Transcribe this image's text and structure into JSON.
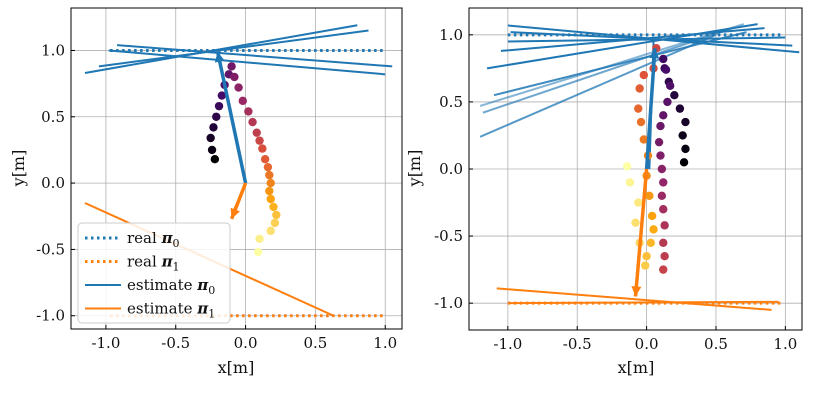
{
  "chart_data": [
    {
      "type": "line",
      "panel": "left",
      "xlabel": "x[m]",
      "ylabel": "y[m]",
      "xlim": [
        -1.25,
        1.12
      ],
      "ylim": [
        -1.1,
        1.32
      ],
      "xticks": [
        -1.0,
        -0.5,
        0.0,
        0.5,
        1.0
      ],
      "xticklabels": [
        "-1.0",
        "-0.5",
        "0.0",
        "0.5",
        "1.0"
      ],
      "yticks": [
        -1.0,
        -0.5,
        0.0,
        0.5,
        1.0
      ],
      "yticklabels": [
        "-1.0",
        "-0.5",
        "0.0",
        "0.5",
        "1.0"
      ],
      "grid": true,
      "legend": {
        "position": "lower-left",
        "entries": [
          {
            "label": "real ",
            "sym": "π",
            "sub": "0",
            "style": "dotted",
            "color": "#1f77b4"
          },
          {
            "label": "real ",
            "sym": "π",
            "sub": "1",
            "style": "dotted",
            "color": "#ff7f0e"
          },
          {
            "label": "estimate ",
            "sym": "π",
            "sub": "0",
            "style": "solid",
            "color": "#1f77b4"
          },
          {
            "label": "estimate ",
            "sym": "π",
            "sub": "1",
            "style": "solid",
            "color": "#ff7f0e"
          }
        ]
      },
      "series": [
        {
          "name": "real π0",
          "style": "dotted",
          "color": "#1f77b4",
          "points": [
            [
              -0.97,
              1.0
            ],
            [
              1.0,
              1.0
            ]
          ]
        },
        {
          "name": "real π1",
          "style": "dotted",
          "color": "#ff7f0e",
          "points": [
            [
              -0.97,
              -1.0
            ],
            [
              1.0,
              -1.0
            ]
          ]
        },
        {
          "name": "estimate π0",
          "style": "solid",
          "color": "#1f77b4",
          "lines": [
            [
              [
                -1.15,
                0.83
              ],
              [
                0.8,
                1.19
              ]
            ],
            [
              [
                -1.05,
                0.88
              ],
              [
                0.88,
                1.15
              ]
            ],
            [
              [
                -0.92,
                1.04
              ],
              [
                1.05,
                0.88
              ]
            ],
            [
              [
                -0.98,
                1.0
              ],
              [
                1.0,
                0.82
              ]
            ],
            [
              [
                -0.2,
                0.99
              ],
              [
                0.0,
                0.0
              ]
            ]
          ]
        },
        {
          "name": "estimate π1",
          "style": "solid",
          "color": "#ff7f0e",
          "lines": [
            [
              [
                -1.15,
                -0.15
              ],
              [
                0.63,
                -1.0
              ]
            ],
            [
              [
                -0.09,
                -0.22
              ],
              [
                0.0,
                0.0
              ]
            ],
            [
              [
                -0.1,
                -0.27
              ],
              [
                -0.02,
                -0.05
              ]
            ]
          ]
        },
        {
          "name": "trajectory",
          "type": "scatter",
          "colormap": "inferno",
          "points": [
            [
              -0.22,
              0.18
            ],
            [
              -0.24,
              0.25
            ],
            [
              -0.25,
              0.34
            ],
            [
              -0.23,
              0.42
            ],
            [
              -0.21,
              0.5
            ],
            [
              -0.19,
              0.58
            ],
            [
              -0.17,
              0.66
            ],
            [
              -0.15,
              0.74
            ],
            [
              -0.12,
              0.82
            ],
            [
              -0.1,
              0.88
            ],
            [
              -0.08,
              0.8
            ],
            [
              -0.05,
              0.72
            ],
            [
              -0.02,
              0.62
            ],
            [
              0.02,
              0.54
            ],
            [
              0.05,
              0.46
            ],
            [
              0.08,
              0.38
            ],
            [
              0.1,
              0.32
            ],
            [
              0.12,
              0.26
            ],
            [
              0.14,
              0.18
            ],
            [
              0.16,
              0.12
            ],
            [
              0.17,
              0.06
            ],
            [
              0.18,
              0.0
            ],
            [
              0.17,
              -0.06
            ],
            [
              0.18,
              -0.12
            ],
            [
              0.2,
              -0.18
            ],
            [
              0.22,
              -0.24
            ],
            [
              0.21,
              -0.3
            ],
            [
              0.18,
              -0.36
            ],
            [
              0.1,
              -0.42
            ],
            [
              0.09,
              -0.52
            ]
          ]
        }
      ],
      "arrows": [
        {
          "from": [
            0.0,
            0.0
          ],
          "to": [
            -0.2,
            0.99
          ],
          "color": "#1f77b4"
        },
        {
          "from": [
            0.0,
            0.0
          ],
          "to": [
            -0.1,
            -0.27
          ],
          "color": "#ff7f0e"
        }
      ]
    },
    {
      "type": "line",
      "panel": "right",
      "xlabel": "x[m]",
      "ylabel": "y[m]",
      "xlim": [
        -1.28,
        1.12
      ],
      "ylim": [
        -1.2,
        1.2
      ],
      "xticks": [
        -1.0,
        -0.5,
        0.0,
        0.5,
        1.0
      ],
      "xticklabels": [
        "-1.0",
        "-0.5",
        "0.0",
        "0.5",
        "1.0"
      ],
      "yticks": [
        -1.0,
        -0.5,
        0.0,
        0.5,
        1.0
      ],
      "yticklabels": [
        "-1.0",
        "-0.5",
        "0.0",
        "0.5",
        "1.0"
      ],
      "grid": true,
      "series": [
        {
          "name": "real π0",
          "style": "dotted",
          "color": "#1f77b4",
          "points": [
            [
              -1.0,
              1.0
            ],
            [
              0.98,
              1.0
            ]
          ]
        },
        {
          "name": "real π1",
          "style": "dotted",
          "color": "#ff7f0e",
          "points": [
            [
              -1.0,
              -1.0
            ],
            [
              0.98,
              -1.0
            ]
          ]
        },
        {
          "name": "estimate π0",
          "style": "solid",
          "color": "#1f77b4",
          "lines": [
            [
              [
                -1.2,
                0.47
              ],
              [
                0.7,
                1.08
              ]
            ],
            [
              [
                -1.18,
                0.42
              ],
              [
                0.62,
                1.05
              ]
            ],
            [
              [
                -1.2,
                0.24
              ],
              [
                0.5,
                1.0
              ]
            ],
            [
              [
                -1.1,
                0.55
              ],
              [
                0.72,
                1.02
              ]
            ],
            [
              [
                -1.15,
                0.75
              ],
              [
                0.8,
                1.08
              ]
            ],
            [
              [
                -1.05,
                0.88
              ],
              [
                0.85,
                1.05
              ]
            ],
            [
              [
                -1.0,
                1.07
              ],
              [
                1.1,
                0.87
              ]
            ],
            [
              [
                -0.98,
                1.02
              ],
              [
                1.05,
                0.92
              ]
            ],
            [
              [
                -1.0,
                0.95
              ],
              [
                1.0,
                0.98
              ]
            ],
            [
              [
                0.05,
                0.95
              ],
              [
                0.02,
                0.0
              ]
            ]
          ]
        },
        {
          "name": "estimate π1",
          "style": "solid",
          "color": "#ff7f0e",
          "lines": [
            [
              [
                -1.08,
                -0.89
              ],
              [
                0.9,
                -1.05
              ]
            ],
            [
              [
                -1.0,
                -1.0
              ],
              [
                0.95,
                -0.99
              ]
            ],
            [
              [
                0.0,
                0.0
              ],
              [
                -0.08,
                -0.95
              ]
            ]
          ]
        },
        {
          "name": "trajectory",
          "type": "scatter",
          "colormap": "inferno",
          "points": [
            [
              0.27,
              0.05
            ],
            [
              0.28,
              0.15
            ],
            [
              0.26,
              0.25
            ],
            [
              0.28,
              0.35
            ],
            [
              0.24,
              0.45
            ],
            [
              0.2,
              0.55
            ],
            [
              0.16,
              0.65
            ],
            [
              0.13,
              0.75
            ],
            [
              0.12,
              0.82
            ],
            [
              0.14,
              0.74
            ],
            [
              0.17,
              0.62
            ],
            [
              0.15,
              0.5
            ],
            [
              0.12,
              0.4
            ],
            [
              0.1,
              0.32
            ],
            [
              0.09,
              0.2
            ],
            [
              0.1,
              0.1
            ],
            [
              0.11,
              0.0
            ],
            [
              0.12,
              -0.1
            ],
            [
              0.11,
              -0.2
            ],
            [
              0.12,
              -0.3
            ],
            [
              0.13,
              -0.42
            ],
            [
              0.12,
              -0.55
            ],
            [
              0.13,
              -0.65
            ],
            [
              0.12,
              -0.75
            ],
            [
              0.07,
              0.9
            ],
            [
              0.05,
              0.75
            ],
            [
              -0.02,
              0.7
            ],
            [
              -0.05,
              0.6
            ],
            [
              -0.06,
              0.45
            ],
            [
              -0.04,
              0.35
            ],
            [
              -0.02,
              0.22
            ],
            [
              0.01,
              0.1
            ],
            [
              0.0,
              -0.05
            ],
            [
              0.02,
              -0.2
            ],
            [
              0.04,
              -0.35
            ],
            [
              0.05,
              -0.45
            ],
            [
              0.03,
              -0.55
            ],
            [
              0.0,
              -0.65
            ],
            [
              -0.01,
              -0.72
            ],
            [
              -0.05,
              -0.55
            ],
            [
              -0.08,
              -0.4
            ],
            [
              -0.06,
              -0.25
            ],
            [
              -0.12,
              -0.1
            ],
            [
              -0.14,
              0.02
            ]
          ]
        }
      ],
      "arrows": [
        {
          "from": [
            0.0,
            0.0
          ],
          "to": [
            0.06,
            0.9
          ],
          "color": "#1f77b4"
        },
        {
          "from": [
            0.0,
            0.0
          ],
          "to": [
            -0.08,
            -0.95
          ],
          "color": "#ff7f0e"
        }
      ]
    }
  ]
}
